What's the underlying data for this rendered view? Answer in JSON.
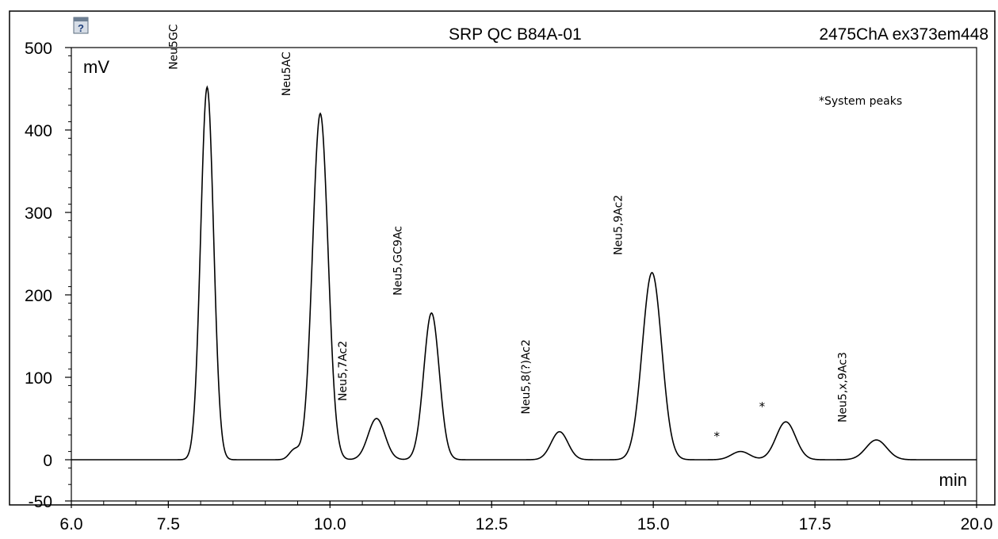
{
  "header": {
    "sample_name": "SRP QC B84A-01",
    "channel": "2475ChA ex373em448",
    "icon": "help-document-icon"
  },
  "chart_data": {
    "type": "line",
    "title": "SRP QC B84A-01",
    "subtitle": "2475ChA ex373em448",
    "xlabel": "min",
    "ylabel": "mV",
    "xlim": [
      6.0,
      20.0
    ],
    "ylim": [
      -50,
      500
    ],
    "x_ticks": [
      "6.0",
      "7.5",
      "10.0",
      "12.5",
      "15.0",
      "17.5",
      "20.0"
    ],
    "y_ticks": [
      "500",
      "400",
      "300",
      "200",
      "100",
      "0",
      "-50"
    ],
    "grid": false,
    "note": "*System peaks",
    "line_color": "#000000",
    "peaks": [
      {
        "label": "Neu5GC",
        "rt": 8.1,
        "height": 452,
        "width": 0.1
      },
      {
        "label": "Neu5AC",
        "rt": 9.85,
        "height": 420,
        "width": 0.12
      },
      {
        "label": "Neu5,7Ac2",
        "rt": 10.72,
        "height": 50,
        "width": 0.13
      },
      {
        "label": "Neu5,GC9Ac",
        "rt": 11.57,
        "height": 178,
        "width": 0.12
      },
      {
        "label": "Neu5,8(?)Ac2",
        "rt": 13.55,
        "height": 34,
        "width": 0.13
      },
      {
        "label": "Neu5,9Ac2",
        "rt": 14.98,
        "height": 227,
        "width": 0.15
      },
      {
        "label": "*",
        "rt": 16.35,
        "height": 10,
        "width": 0.14
      },
      {
        "label": "*",
        "rt": 17.05,
        "height": 46,
        "width": 0.15
      },
      {
        "label": "Neu5,x,9Ac3",
        "rt": 18.45,
        "height": 24,
        "width": 0.16
      }
    ],
    "shoulders": [
      {
        "rt": 9.45,
        "height": 12,
        "width": 0.08
      }
    ]
  }
}
